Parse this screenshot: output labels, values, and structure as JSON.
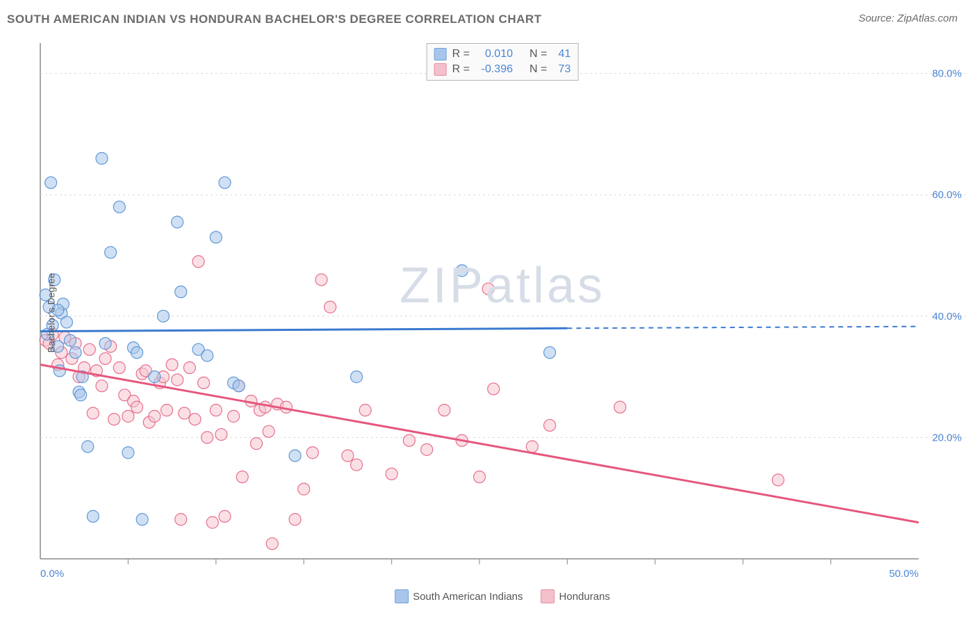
{
  "header": {
    "title": "SOUTH AMERICAN INDIAN VS HONDURAN BACHELOR'S DEGREE CORRELATION CHART",
    "source": "Source: ZipAtlas.com"
  },
  "watermark": "ZIPatlas",
  "chart": {
    "type": "scatter",
    "ylabel": "Bachelor's Degree",
    "background_color": "#ffffff",
    "grid_color": "#d9d9d9",
    "axis_color": "#8a8a8a",
    "tick_color": "#9a9a9a",
    "axis_label_color": "#4b86d6",
    "xlim": [
      0,
      50
    ],
    "ylim": [
      0,
      85
    ],
    "xticks": [
      5,
      10,
      15,
      20,
      25,
      30,
      35,
      40,
      45
    ],
    "yticks_grid": [
      20,
      40,
      60,
      80
    ],
    "x_axis_labels": [
      {
        "v": 0,
        "t": "0.0%"
      },
      {
        "v": 50,
        "t": "50.0%"
      }
    ],
    "y_axis_labels": [
      {
        "v": 20,
        "t": "20.0%"
      },
      {
        "v": 40,
        "t": "40.0%"
      },
      {
        "v": 60,
        "t": "60.0%"
      },
      {
        "v": 80,
        "t": "80.0%"
      }
    ],
    "point_radius": 8.5,
    "point_stroke_width": 1.2,
    "trendline_width": 3,
    "series": [
      {
        "key": "sai",
        "label": "South American Indians",
        "fill": "#a9c7eb",
        "stroke": "#5f98d8",
        "fill_opacity": 0.55,
        "swatch_fill": "#a7c6ea",
        "swatch_stroke": "#6ea0db",
        "R": "0.010",
        "N": "41",
        "trend": {
          "x1": 0,
          "y1": 37.5,
          "x2": 30,
          "y2": 38.0,
          "x2_dash_end": 50,
          "y2_dash_end": 38.3,
          "color": "#3a79cf"
        },
        "points": [
          [
            0.3,
            43.5
          ],
          [
            0.4,
            37.0
          ],
          [
            0.5,
            41.5
          ],
          [
            0.7,
            38.5
          ],
          [
            0.8,
            46.0
          ],
          [
            0.6,
            62.0
          ],
          [
            1.0,
            35.0
          ],
          [
            1.1,
            31.0
          ],
          [
            1.2,
            40.5
          ],
          [
            1.3,
            42.0
          ],
          [
            1.5,
            39.0
          ],
          [
            1.7,
            36.0
          ],
          [
            2.0,
            34.0
          ],
          [
            2.2,
            27.5
          ],
          [
            2.3,
            27.0
          ],
          [
            2.4,
            30.0
          ],
          [
            2.7,
            18.5
          ],
          [
            3.0,
            7.0
          ],
          [
            3.5,
            66.0
          ],
          [
            3.7,
            35.5
          ],
          [
            4.0,
            50.5
          ],
          [
            4.5,
            58.0
          ],
          [
            5.0,
            17.5
          ],
          [
            5.3,
            34.8
          ],
          [
            5.5,
            34.0
          ],
          [
            5.8,
            6.5
          ],
          [
            6.5,
            30.0
          ],
          [
            7.0,
            40.0
          ],
          [
            7.8,
            55.5
          ],
          [
            8.0,
            44.0
          ],
          [
            9.0,
            34.5
          ],
          [
            9.5,
            33.5
          ],
          [
            10.0,
            53.0
          ],
          [
            10.5,
            62.0
          ],
          [
            11.0,
            29.0
          ],
          [
            11.3,
            28.5
          ],
          [
            14.5,
            17.0
          ],
          [
            18.0,
            30.0
          ],
          [
            24.0,
            47.5
          ],
          [
            29.0,
            34.0
          ],
          [
            1.0,
            41.0
          ]
        ]
      },
      {
        "key": "hon",
        "label": "Hondurans",
        "fill": "#f5c6cf",
        "stroke": "#e66f8d",
        "fill_opacity": 0.55,
        "swatch_fill": "#f3c1cc",
        "swatch_stroke": "#e98ba0",
        "R": "-0.396",
        "N": "73",
        "trend": {
          "x1": 0,
          "y1": 32.0,
          "x2": 50,
          "y2": 6.0,
          "color": "#e5577c"
        },
        "points": [
          [
            0.3,
            36.0
          ],
          [
            0.5,
            35.5
          ],
          [
            0.7,
            37.0
          ],
          [
            1.0,
            32.0
          ],
          [
            1.2,
            34.0
          ],
          [
            1.4,
            36.5
          ],
          [
            1.8,
            33.0
          ],
          [
            2.0,
            35.5
          ],
          [
            2.2,
            30.0
          ],
          [
            2.5,
            31.5
          ],
          [
            2.8,
            34.5
          ],
          [
            3.0,
            24.0
          ],
          [
            3.2,
            31.0
          ],
          [
            3.5,
            28.5
          ],
          [
            3.7,
            33.0
          ],
          [
            4.0,
            35.0
          ],
          [
            4.2,
            23.0
          ],
          [
            4.5,
            31.5
          ],
          [
            4.8,
            27.0
          ],
          [
            5.0,
            23.5
          ],
          [
            5.3,
            26.0
          ],
          [
            5.5,
            25.0
          ],
          [
            5.8,
            30.5
          ],
          [
            6.0,
            31.0
          ],
          [
            6.2,
            22.5
          ],
          [
            6.5,
            23.5
          ],
          [
            6.8,
            29.0
          ],
          [
            7.0,
            30.0
          ],
          [
            7.2,
            24.5
          ],
          [
            7.5,
            32.0
          ],
          [
            7.8,
            29.5
          ],
          [
            8.0,
            6.5
          ],
          [
            8.2,
            24.0
          ],
          [
            8.5,
            31.5
          ],
          [
            8.8,
            23.0
          ],
          [
            9.0,
            49.0
          ],
          [
            9.3,
            29.0
          ],
          [
            9.5,
            20.0
          ],
          [
            9.8,
            6.0
          ],
          [
            10.0,
            24.5
          ],
          [
            10.3,
            20.5
          ],
          [
            10.5,
            7.0
          ],
          [
            11.0,
            23.5
          ],
          [
            11.3,
            28.5
          ],
          [
            11.5,
            13.5
          ],
          [
            12.0,
            26.0
          ],
          [
            12.3,
            19.0
          ],
          [
            12.5,
            24.5
          ],
          [
            12.8,
            25.0
          ],
          [
            13.0,
            21.0
          ],
          [
            13.2,
            2.5
          ],
          [
            13.5,
            25.5
          ],
          [
            14.0,
            25.0
          ],
          [
            14.5,
            6.5
          ],
          [
            15.0,
            11.5
          ],
          [
            15.5,
            17.5
          ],
          [
            16.0,
            46.0
          ],
          [
            16.5,
            41.5
          ],
          [
            17.5,
            17.0
          ],
          [
            18.0,
            15.5
          ],
          [
            18.5,
            24.5
          ],
          [
            20.0,
            14.0
          ],
          [
            21.0,
            19.5
          ],
          [
            22.0,
            18.0
          ],
          [
            23.0,
            24.5
          ],
          [
            24.0,
            19.5
          ],
          [
            25.0,
            13.5
          ],
          [
            25.5,
            44.5
          ],
          [
            25.8,
            28.0
          ],
          [
            28.0,
            18.5
          ],
          [
            29.0,
            22.0
          ],
          [
            33.0,
            25.0
          ],
          [
            42.0,
            13.0
          ]
        ]
      }
    ]
  },
  "legend_bottom": [
    {
      "key": "sai",
      "label": "South American Indians"
    },
    {
      "key": "hon",
      "label": "Hondurans"
    }
  ]
}
